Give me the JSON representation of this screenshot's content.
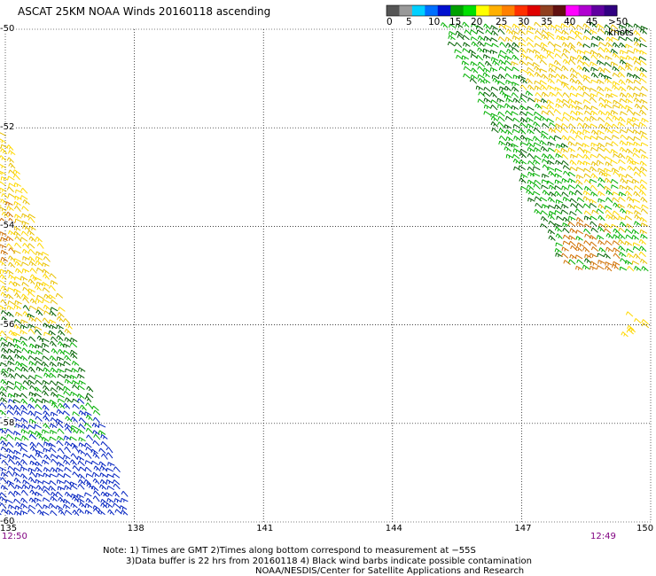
{
  "header": {
    "title": "ASCAT 25KM NOAA Winds 20160118 ascending"
  },
  "legend": {
    "bins": [
      {
        "color": "#555555"
      },
      {
        "color": "#999999"
      },
      {
        "color": "#00d0ff"
      },
      {
        "color": "#0070ff"
      },
      {
        "color": "#0010d0"
      },
      {
        "color": "#00a000"
      },
      {
        "color": "#00e000"
      },
      {
        "color": "#ffff00"
      },
      {
        "color": "#ffb000"
      },
      {
        "color": "#ff8000"
      },
      {
        "color": "#ff3000"
      },
      {
        "color": "#e00000"
      },
      {
        "color": "#904020"
      },
      {
        "color": "#601010"
      },
      {
        "color": "#ff00ff"
      },
      {
        "color": "#b000d0"
      },
      {
        "color": "#6000a0"
      },
      {
        "color": "#300080"
      }
    ],
    "labels": [
      "0",
      "5",
      "10",
      "15",
      "20",
      "25",
      "30",
      "35",
      "40",
      "45",
      ">50 knots"
    ]
  },
  "map": {
    "lat_labels": [
      "-50",
      "-52",
      "-54",
      "-56",
      "-58",
      "-60"
    ],
    "lon_labels": [
      "135",
      "138",
      "141",
      "144",
      "147",
      "150"
    ],
    "time_left": "12:50",
    "time_right": "12:49",
    "time_color": "#800080"
  },
  "swath_colors": {
    "dark_green": "#006000",
    "green": "#00b000",
    "yellow": "#ffd800",
    "gold": "#e8c000",
    "orange": "#d07000",
    "blue": "#0020c0"
  },
  "notes": {
    "line1": "Note: 1) Times are GMT 2)Times along bottom correspond to measurement at −55S",
    "line2": "3)Data buffer is 22 hrs from 20160118 4) Black wind barbs indicate possible contamination",
    "line3": "NOAA/NESDIS/Center for Satellite Applications and Research"
  }
}
